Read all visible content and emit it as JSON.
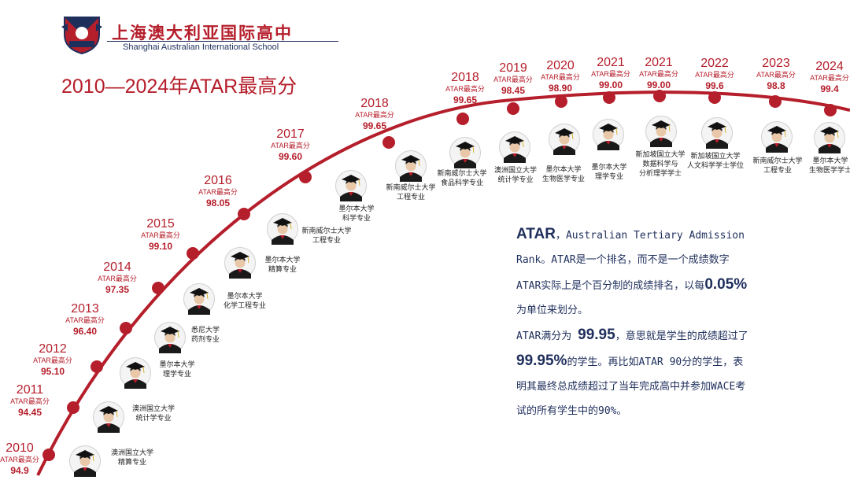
{
  "header": {
    "school_cn": "上海澳大利亚国际高中",
    "school_en": "Shanghai Australian International School",
    "title": "2010—2024年ATAR最高分"
  },
  "tag_label": "ATAR最高分",
  "timeline": [
    {
      "year": "2010",
      "score": "94.9",
      "caption": [
        "澳洲国立大学",
        "精算专业"
      ]
    },
    {
      "year": "2011",
      "score": "94.45",
      "caption": [
        "澳洲国立大学",
        "统计学专业"
      ]
    },
    {
      "year": "2012",
      "score": "95.10",
      "caption": [
        "墨尔本大学",
        "理学专业"
      ]
    },
    {
      "year": "2013",
      "score": "96.40",
      "caption": [
        "悉尼大学",
        "药剂专业"
      ]
    },
    {
      "year": "2014",
      "score": "97.35",
      "caption": [
        "墨尔本大学",
        "化学工程专业"
      ]
    },
    {
      "year": "2015",
      "score": "99.10",
      "caption": [
        "墨尔本大学",
        "精算专业"
      ]
    },
    {
      "year": "2016",
      "score": "98.05",
      "caption": [
        "新南威尔士大学",
        "工程专业"
      ]
    },
    {
      "year": "2017",
      "score": "99.60",
      "caption": [
        "墨尔本大学",
        "科学专业"
      ]
    },
    {
      "year": "2018",
      "score": "99.65",
      "caption": [
        "新南威尔士大学",
        "工程专业"
      ]
    },
    {
      "year": "2018",
      "score": "99.65",
      "caption": [
        "新南威尔士大学",
        "食品科学专业"
      ]
    },
    {
      "year": "2019",
      "score": "98.45",
      "caption": [
        "澳洲国立大学",
        "统计学专业"
      ]
    },
    {
      "year": "2020",
      "score": "98.90",
      "caption": [
        "墨尔本大学",
        "生物医学专业"
      ]
    },
    {
      "year": "2021",
      "score": "99.00",
      "caption": [
        "墨尔本大学",
        "理学专业"
      ]
    },
    {
      "year": "2021",
      "score": "99.00",
      "caption": [
        "新加坡国立大学",
        "数据科学与",
        "分析理学学士"
      ]
    },
    {
      "year": "2022",
      "score": "99.6",
      "caption": [
        "新加坡国立大学",
        "人文科学学士学位"
      ]
    },
    {
      "year": "2023",
      "score": "98.8",
      "caption": [
        "新南威尔士大学",
        "工程专业"
      ]
    },
    {
      "year": "2024",
      "score": "99.4",
      "caption": [
        "墨尔本大学",
        "生物医学学士"
      ]
    }
  ],
  "explanation": {
    "p1_head": "ATAR",
    "p1_text": "，Australian Tertiary Admission Rank。ATAR是一个排名，而不是一个成绩数字ATAR实际上是个百分制的成绩排名，以每",
    "p1_big": "0.05%",
    "p1_tail": "为单位来划分。",
    "p2_pre": "ATAR满分为",
    "p2_big1": "99.95",
    "p2_mid": "，意思就是学生的成绩超过了",
    "p2_big2": "99.95%",
    "p2_tail": "的学生。再比如ATAR 90分的学生，表明其最终总成绩超过了当年完成高中并参加WACE考试的所有学生中的90%。"
  },
  "colors": {
    "accent": "#b51e2b",
    "navy": "#1f2f5c"
  }
}
